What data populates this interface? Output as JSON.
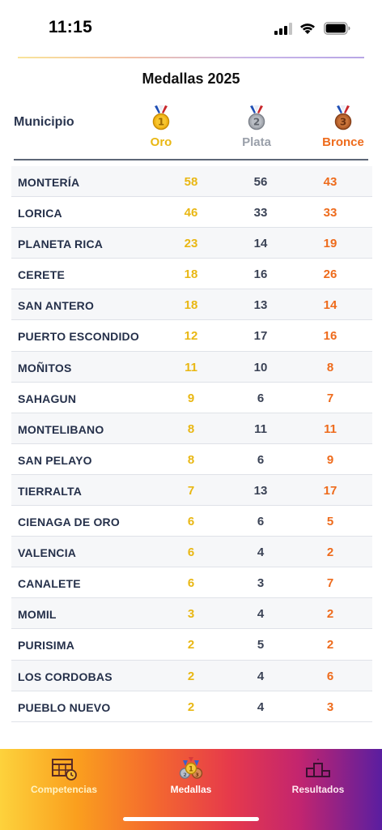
{
  "status_bar": {
    "time": "11:15"
  },
  "page": {
    "title": "Medallas 2025"
  },
  "table": {
    "header": {
      "municipio": "Municipio",
      "oro": "Oro",
      "plata": "Plata",
      "bronce": "Bronce"
    },
    "medal_icons": {
      "oro": "1",
      "plata": "2",
      "bronce": "3"
    },
    "rows": [
      {
        "name": "MONTERÍA",
        "oro": "58",
        "plata": "56",
        "bronce": "43"
      },
      {
        "name": "LORICA",
        "oro": "46",
        "plata": "33",
        "bronce": "33"
      },
      {
        "name": "PLANETA RICA",
        "oro": "23",
        "plata": "14",
        "bronce": "19"
      },
      {
        "name": "CERETE",
        "oro": "18",
        "plata": "16",
        "bronce": "26"
      },
      {
        "name": "SAN ANTERO",
        "oro": "18",
        "plata": "13",
        "bronce": "14"
      },
      {
        "name": "PUERTO ESCONDIDO",
        "oro": "12",
        "plata": "17",
        "bronce": "16"
      },
      {
        "name": "MOÑITOS",
        "oro": "11",
        "plata": "10",
        "bronce": "8"
      },
      {
        "name": "SAHAGUN",
        "oro": "9",
        "plata": "6",
        "bronce": "7"
      },
      {
        "name": "MONTELIBANO",
        "oro": "8",
        "plata": "11",
        "bronce": "11"
      },
      {
        "name": "SAN PELAYO",
        "oro": "8",
        "plata": "6",
        "bronce": "9"
      },
      {
        "name": "TIERRALTA",
        "oro": "7",
        "plata": "13",
        "bronce": "17"
      },
      {
        "name": "CIENAGA DE ORO",
        "oro": "6",
        "plata": "6",
        "bronce": "5"
      },
      {
        "name": "VALENCIA",
        "oro": "6",
        "plata": "4",
        "bronce": "2"
      },
      {
        "name": "CANALETE",
        "oro": "6",
        "plata": "3",
        "bronce": "7"
      },
      {
        "name": "MOMIL",
        "oro": "3",
        "plata": "4",
        "bronce": "2"
      },
      {
        "name": "PURISIMA",
        "oro": "2",
        "plata": "5",
        "bronce": "2"
      },
      {
        "name": "LOS CORDOBAS",
        "oro": "2",
        "plata": "4",
        "bronce": "6"
      },
      {
        "name": "PUEBLO NUEVO",
        "oro": "2",
        "plata": "4",
        "bronce": "3"
      }
    ]
  },
  "bottom_nav": {
    "competencias": "Competencias",
    "medallas": "Medallas",
    "resultados": "Resultados",
    "active": "medallas"
  },
  "colors": {
    "gold": "#e9b713",
    "silver_text": "#3b4356",
    "bronze": "#ee6b1c"
  }
}
